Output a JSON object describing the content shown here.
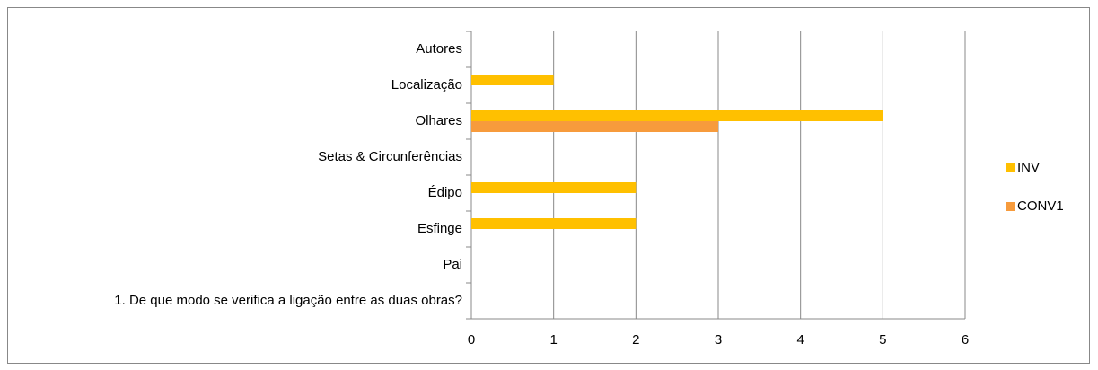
{
  "chart_data": {
    "type": "bar",
    "orientation": "horizontal",
    "categories": [
      "Autores",
      "Localização",
      "Olhares",
      "Setas & Circunferências",
      "Édipo",
      "Esfinge",
      "Pai",
      "1. De que modo se verifica a ligação entre as duas obras?"
    ],
    "series": [
      {
        "name": "INV",
        "color": "#FFC000",
        "values": [
          0,
          1,
          5,
          0,
          2,
          2,
          0,
          0
        ]
      },
      {
        "name": "CONV1",
        "color": "#F79B3C",
        "values": [
          0,
          0,
          3,
          0,
          0,
          0,
          0,
          0
        ]
      }
    ],
    "xlim": [
      0,
      6
    ],
    "xticks": [
      0,
      1,
      2,
      3,
      4,
      5,
      6
    ],
    "grid": true,
    "legend": "right"
  }
}
